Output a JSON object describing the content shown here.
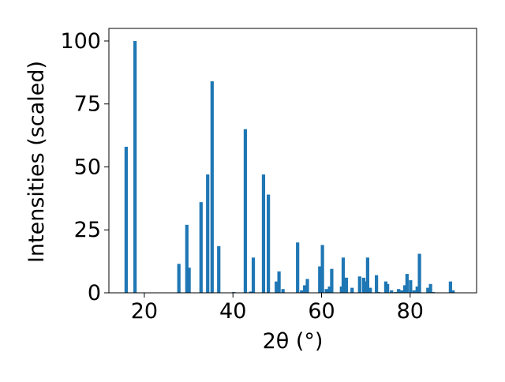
{
  "chart_data": {
    "type": "bar",
    "xlabel": "2θ (°)",
    "ylabel": "Intensities (scaled)",
    "xlim": [
      12,
      95
    ],
    "ylim": [
      0,
      105
    ],
    "x_ticks": [
      20,
      40,
      60,
      80
    ],
    "y_ticks": [
      0,
      25,
      50,
      75,
      100
    ],
    "grid": false,
    "bar_width": 0.75,
    "color": "#1f77b4",
    "series": [
      {
        "x": [
          15.9,
          17.9,
          27.8,
          29.6,
          30.1,
          32.8,
          34.3,
          35.3,
          36.8,
          40.2,
          42.8,
          44.0,
          44.6,
          46.9,
          48.0,
          49.8,
          50.4,
          51.3,
          54.6,
          55.5,
          56.2,
          56.8,
          59.6,
          60.2,
          61.1,
          61.8,
          62.3,
          64.5,
          64.9,
          65.6,
          66.9,
          68.6,
          69.5,
          69.9,
          70.4,
          71.0,
          72.4,
          72.9,
          74.5,
          74.9,
          75.8,
          76.7,
          77.4,
          78.1,
          78.8,
          79.3,
          80.1,
          80.9,
          81.6,
          82.1,
          84.0,
          84.6,
          85.2,
          89.1,
          89.7
        ],
        "values": [
          58,
          100,
          11.5,
          27,
          10,
          36,
          47,
          84,
          18.5,
          0.3,
          65,
          0.5,
          14,
          47,
          39,
          4.5,
          8.5,
          1.5,
          20,
          1,
          3,
          5.5,
          10.5,
          19,
          1.5,
          2.5,
          9.5,
          2.5,
          14,
          6,
          2,
          6.5,
          6,
          4.5,
          14,
          2,
          7,
          0.3,
          4.5,
          3.5,
          1,
          0.3,
          1.5,
          1,
          3,
          7.5,
          5,
          1,
          2.5,
          15.5,
          2,
          3.5,
          0.3,
          4.5,
          1
        ]
      }
    ]
  }
}
